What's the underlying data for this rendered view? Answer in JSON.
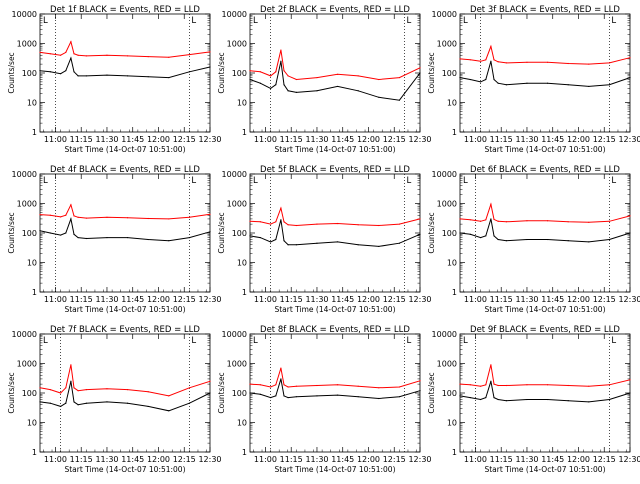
{
  "chart_data": [
    {
      "type": "line",
      "title": "Det 1f BLACK = Events, RED = LLD",
      "marker": "L",
      "ylabel": "Counts/sec",
      "xlabel": "Start Time (14-Oct-07 10:51:00)",
      "xlim": [
        10.85,
        12.5
      ],
      "ylim": [
        1,
        10000
      ],
      "yscale": "log",
      "xticks": [
        "11:00",
        "11:15",
        "11:30",
        "11:45",
        "12:00",
        "12:15",
        "12:30"
      ],
      "ytick_labels": [
        "1",
        "10",
        "100",
        "1000",
        "10000"
      ],
      "vlines": [
        11.0,
        12.3
      ],
      "series": [
        {
          "color": "#ff0000",
          "x": [
            10.85,
            10.95,
            11.05,
            11.1,
            11.15,
            11.18,
            11.22,
            11.3,
            11.5,
            11.7,
            11.9,
            12.1,
            12.3,
            12.5
          ],
          "y": [
            500,
            450,
            400,
            500,
            1150,
            450,
            400,
            380,
            400,
            380,
            360,
            340,
            420,
            520
          ]
        },
        {
          "color": "#000000",
          "x": [
            10.85,
            10.95,
            11.05,
            11.1,
            11.15,
            11.18,
            11.22,
            11.3,
            11.5,
            11.7,
            11.9,
            12.1,
            12.3,
            12.5
          ],
          "y": [
            120,
            110,
            95,
            120,
            320,
            110,
            80,
            80,
            85,
            80,
            75,
            70,
            110,
            160
          ]
        }
      ]
    },
    {
      "type": "line",
      "title": "Det 2f BLACK = Events, RED = LLD",
      "marker": "L",
      "ylabel": "Counts/sec",
      "xlabel": "Start Time (14-Oct-07 10:51:00)",
      "xlim": [
        10.85,
        12.5
      ],
      "ylim": [
        1,
        10000
      ],
      "yscale": "log",
      "xticks": [
        "11:00",
        "11:15",
        "11:30",
        "11:45",
        "12:00",
        "12:15",
        "12:30"
      ],
      "ytick_labels": [
        "1",
        "10",
        "100",
        "1000",
        "10000"
      ],
      "vlines": [
        11.05,
        12.35
      ],
      "series": [
        {
          "color": "#ff0000",
          "x": [
            10.85,
            10.95,
            11.05,
            11.1,
            11.15,
            11.18,
            11.22,
            11.3,
            11.5,
            11.7,
            11.9,
            12.1,
            12.3,
            12.5
          ],
          "y": [
            120,
            110,
            80,
            110,
            600,
            120,
            80,
            60,
            70,
            90,
            80,
            60,
            70,
            150
          ]
        },
        {
          "color": "#000000",
          "x": [
            10.85,
            10.95,
            11.05,
            11.1,
            11.15,
            11.18,
            11.22,
            11.3,
            11.5,
            11.7,
            11.9,
            12.1,
            12.3,
            12.5
          ],
          "y": [
            60,
            45,
            30,
            40,
            250,
            40,
            25,
            22,
            25,
            35,
            25,
            15,
            12,
            100
          ]
        }
      ]
    },
    {
      "type": "line",
      "title": "Det 3f BLACK = Events, RED = LLD",
      "marker": "L",
      "ylabel": "Counts/sec",
      "xlabel": "Start Time (14-Oct-07 10:51:00)",
      "xlim": [
        10.85,
        12.5
      ],
      "ylim": [
        1,
        10000
      ],
      "yscale": "log",
      "xticks": [
        "11:00",
        "11:15",
        "11:30",
        "11:45",
        "12:00",
        "12:15",
        "12:30"
      ],
      "ytick_labels": [
        "1",
        "10",
        "100",
        "1000",
        "10000"
      ],
      "vlines": [
        11.05,
        12.3
      ],
      "series": [
        {
          "color": "#ff0000",
          "x": [
            10.85,
            10.95,
            11.05,
            11.1,
            11.15,
            11.18,
            11.22,
            11.3,
            11.5,
            11.7,
            11.9,
            12.1,
            12.3,
            12.5
          ],
          "y": [
            300,
            280,
            250,
            280,
            800,
            280,
            240,
            220,
            230,
            230,
            210,
            200,
            220,
            330
          ]
        },
        {
          "color": "#000000",
          "x": [
            10.85,
            10.95,
            11.05,
            11.1,
            11.15,
            11.18,
            11.22,
            11.3,
            11.5,
            11.7,
            11.9,
            12.1,
            12.3,
            12.5
          ],
          "y": [
            70,
            60,
            50,
            60,
            250,
            60,
            45,
            40,
            45,
            45,
            40,
            35,
            40,
            70
          ]
        }
      ]
    },
    {
      "type": "line",
      "title": "Det 4f BLACK = Events, RED = LLD",
      "marker": "L",
      "ylabel": "Counts/sec",
      "xlabel": "Start Time (14-Oct-07 10:51:00)",
      "xlim": [
        10.85,
        12.5
      ],
      "ylim": [
        1,
        10000
      ],
      "yscale": "log",
      "xticks": [
        "11:00",
        "11:15",
        "11:30",
        "11:45",
        "12:00",
        "12:15",
        "12:30"
      ],
      "ytick_labels": [
        "1",
        "10",
        "100",
        "1000",
        "10000"
      ],
      "vlines": [
        11.0,
        12.3
      ],
      "series": [
        {
          "color": "#ff0000",
          "x": [
            10.85,
            10.95,
            11.05,
            11.1,
            11.15,
            11.18,
            11.22,
            11.3,
            11.5,
            11.7,
            11.9,
            12.1,
            12.3,
            12.5
          ],
          "y": [
            420,
            400,
            350,
            400,
            900,
            380,
            340,
            320,
            340,
            330,
            310,
            300,
            340,
            430
          ]
        },
        {
          "color": "#000000",
          "x": [
            10.85,
            10.95,
            11.05,
            11.1,
            11.15,
            11.18,
            11.22,
            11.3,
            11.5,
            11.7,
            11.9,
            12.1,
            12.3,
            12.5
          ],
          "y": [
            120,
            100,
            85,
            100,
            300,
            90,
            70,
            65,
            70,
            70,
            60,
            55,
            70,
            110
          ]
        }
      ]
    },
    {
      "type": "line",
      "title": "Det 5f BLACK = Events, RED = LLD",
      "marker": "L",
      "ylabel": "Counts/sec",
      "xlabel": "Start Time (14-Oct-07 10:51:00)",
      "xlim": [
        10.85,
        12.5
      ],
      "ylim": [
        1,
        10000
      ],
      "yscale": "log",
      "xticks": [
        "11:00",
        "11:15",
        "11:30",
        "11:45",
        "12:00",
        "12:15",
        "12:30"
      ],
      "ytick_labels": [
        "1",
        "10",
        "100",
        "1000",
        "10000"
      ],
      "vlines": [
        11.05,
        12.35
      ],
      "series": [
        {
          "color": "#ff0000",
          "x": [
            10.85,
            10.95,
            11.05,
            11.1,
            11.15,
            11.18,
            11.22,
            11.3,
            11.5,
            11.7,
            11.9,
            12.1,
            12.3,
            12.5
          ],
          "y": [
            250,
            240,
            200,
            240,
            700,
            240,
            190,
            180,
            200,
            210,
            190,
            180,
            200,
            300
          ]
        },
        {
          "color": "#000000",
          "x": [
            10.85,
            10.95,
            11.05,
            11.1,
            11.15,
            11.18,
            11.22,
            11.3,
            11.5,
            11.7,
            11.9,
            12.1,
            12.3,
            12.5
          ],
          "y": [
            80,
            70,
            50,
            60,
            280,
            55,
            40,
            40,
            45,
            50,
            40,
            35,
            45,
            90
          ]
        }
      ]
    },
    {
      "type": "line",
      "title": "Det 6f BLACK = Events, RED = LLD",
      "marker": "L",
      "ylabel": "Counts/sec",
      "xlabel": "Start Time (14-Oct-07 10:51:00)",
      "xlim": [
        10.85,
        12.5
      ],
      "ylim": [
        1,
        10000
      ],
      "yscale": "log",
      "xticks": [
        "11:00",
        "11:15",
        "11:30",
        "11:45",
        "12:00",
        "12:15",
        "12:30"
      ],
      "ytick_labels": [
        "1",
        "10",
        "100",
        "1000",
        "10000"
      ],
      "vlines": [
        11.0,
        12.3
      ],
      "series": [
        {
          "color": "#ff0000",
          "x": [
            10.85,
            10.95,
            11.05,
            11.1,
            11.15,
            11.18,
            11.22,
            11.3,
            11.5,
            11.7,
            11.9,
            12.1,
            12.3,
            12.5
          ],
          "y": [
            300,
            280,
            250,
            280,
            950,
            290,
            250,
            240,
            260,
            260,
            240,
            230,
            250,
            380
          ]
        },
        {
          "color": "#000000",
          "x": [
            10.85,
            10.95,
            11.05,
            11.1,
            11.15,
            11.18,
            11.22,
            11.3,
            11.5,
            11.7,
            11.9,
            12.1,
            12.3,
            12.5
          ],
          "y": [
            100,
            90,
            70,
            80,
            300,
            80,
            60,
            55,
            60,
            60,
            55,
            50,
            60,
            100
          ]
        }
      ]
    },
    {
      "type": "line",
      "title": "Det 7f BLACK = Events, RED = LLD",
      "marker": "L",
      "ylabel": "Counts/sec",
      "xlabel": "Start Time (14-Oct-07 10:51:00)",
      "xlim": [
        10.85,
        12.5
      ],
      "ylim": [
        1,
        10000
      ],
      "yscale": "log",
      "xticks": [
        "11:00",
        "11:15",
        "11:30",
        "11:45",
        "12:00",
        "12:15",
        "12:30"
      ],
      "ytick_labels": [
        "1",
        "10",
        "100",
        "1000",
        "10000"
      ],
      "vlines": [
        11.05,
        12.3
      ],
      "series": [
        {
          "color": "#ff0000",
          "x": [
            10.85,
            10.95,
            11.05,
            11.1,
            11.15,
            11.18,
            11.22,
            11.3,
            11.5,
            11.7,
            11.9,
            12.1,
            12.3,
            12.5
          ],
          "y": [
            150,
            130,
            100,
            150,
            900,
            150,
            120,
            130,
            140,
            130,
            110,
            80,
            150,
            250
          ]
        },
        {
          "color": "#000000",
          "x": [
            10.85,
            10.95,
            11.05,
            11.1,
            11.15,
            11.18,
            11.22,
            11.3,
            11.5,
            11.7,
            11.9,
            12.1,
            12.3,
            12.5
          ],
          "y": [
            50,
            45,
            35,
            45,
            250,
            50,
            40,
            45,
            50,
            45,
            35,
            25,
            45,
            100
          ]
        }
      ]
    },
    {
      "type": "line",
      "title": "Det 8f BLACK = Events, RED = LLD",
      "marker": "L",
      "ylabel": "Counts/sec",
      "xlabel": "Start Time (14-Oct-07 10:51:00)",
      "xlim": [
        10.85,
        12.5
      ],
      "ylim": [
        1,
        10000
      ],
      "yscale": "log",
      "xticks": [
        "11:00",
        "11:15",
        "11:30",
        "11:45",
        "12:00",
        "12:15",
        "12:30"
      ],
      "ytick_labels": [
        "1",
        "10",
        "100",
        "1000",
        "10000"
      ],
      "vlines": [
        11.05,
        12.35
      ],
      "series": [
        {
          "color": "#ff0000",
          "x": [
            10.85,
            10.95,
            11.05,
            11.1,
            11.15,
            11.18,
            11.22,
            11.3,
            11.5,
            11.7,
            11.9,
            12.1,
            12.3,
            12.5
          ],
          "y": [
            200,
            190,
            160,
            190,
            700,
            190,
            160,
            170,
            180,
            190,
            170,
            150,
            160,
            260
          ]
        },
        {
          "color": "#000000",
          "x": [
            10.85,
            10.95,
            11.05,
            11.1,
            11.15,
            11.18,
            11.22,
            11.3,
            11.5,
            11.7,
            11.9,
            12.1,
            12.3,
            12.5
          ],
          "y": [
            100,
            90,
            70,
            80,
            300,
            80,
            70,
            75,
            80,
            85,
            75,
            65,
            75,
            120
          ]
        }
      ]
    },
    {
      "type": "line",
      "title": "Det 9f BLACK = Events, RED = LLD",
      "marker": "L",
      "ylabel": "Counts/sec",
      "xlabel": "Start Time (14-Oct-07 10:51:00)",
      "xlim": [
        10.85,
        12.5
      ],
      "ylim": [
        1,
        10000
      ],
      "yscale": "log",
      "xticks": [
        "11:00",
        "11:15",
        "11:30",
        "11:45",
        "12:00",
        "12:15",
        "12:30"
      ],
      "ytick_labels": [
        "1",
        "10",
        "100",
        "1000",
        "10000"
      ],
      "vlines": [
        11.0,
        12.3
      ],
      "series": [
        {
          "color": "#ff0000",
          "x": [
            10.85,
            10.95,
            11.05,
            11.1,
            11.15,
            11.18,
            11.22,
            11.3,
            11.5,
            11.7,
            11.9,
            12.1,
            12.3,
            12.5
          ],
          "y": [
            200,
            190,
            170,
            190,
            900,
            200,
            180,
            180,
            190,
            190,
            180,
            170,
            190,
            280
          ]
        },
        {
          "color": "#000000",
          "x": [
            10.85,
            10.95,
            11.05,
            11.1,
            11.15,
            11.18,
            11.22,
            11.3,
            11.5,
            11.7,
            11.9,
            12.1,
            12.3,
            12.5
          ],
          "y": [
            80,
            70,
            60,
            70,
            250,
            70,
            60,
            55,
            60,
            60,
            55,
            50,
            60,
            100
          ]
        }
      ]
    }
  ]
}
